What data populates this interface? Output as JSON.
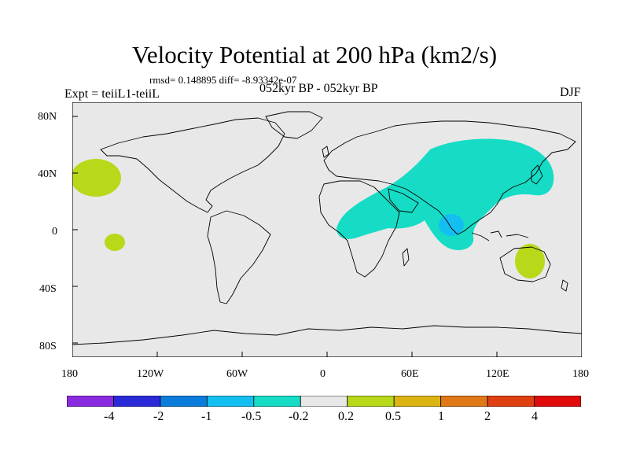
{
  "title": "Velocity Potential at 200 hPa (km2/s)",
  "stats_text": "rmsd= 0.148895 diff= -8.93342e-07",
  "experiment": "Expt = teiiL1-teiiL",
  "period": "052kyr BP - 052kyr BP",
  "season": "DJF",
  "lat_labels": [
    "80N",
    "40N",
    "0",
    "40S",
    "80S"
  ],
  "lon_labels": [
    "180",
    "120W",
    "60W",
    "0",
    "60E",
    "120E",
    "180"
  ],
  "colorbar": {
    "colors": [
      "#8a2be2",
      "#2a2ad8",
      "#0a7ddc",
      "#12bff0",
      "#16dcc6",
      "#e8e8e8",
      "#b8d81a",
      "#dcb412",
      "#e07818",
      "#e04010",
      "#e00a0a"
    ],
    "labels": [
      "-4",
      "-2",
      "-1",
      "-0.5",
      "-0.2",
      "0.2",
      "0.5",
      "1",
      "2",
      "4"
    ]
  },
  "colors": {
    "map_background": "#e8e8e8",
    "coastline": "#000000"
  }
}
